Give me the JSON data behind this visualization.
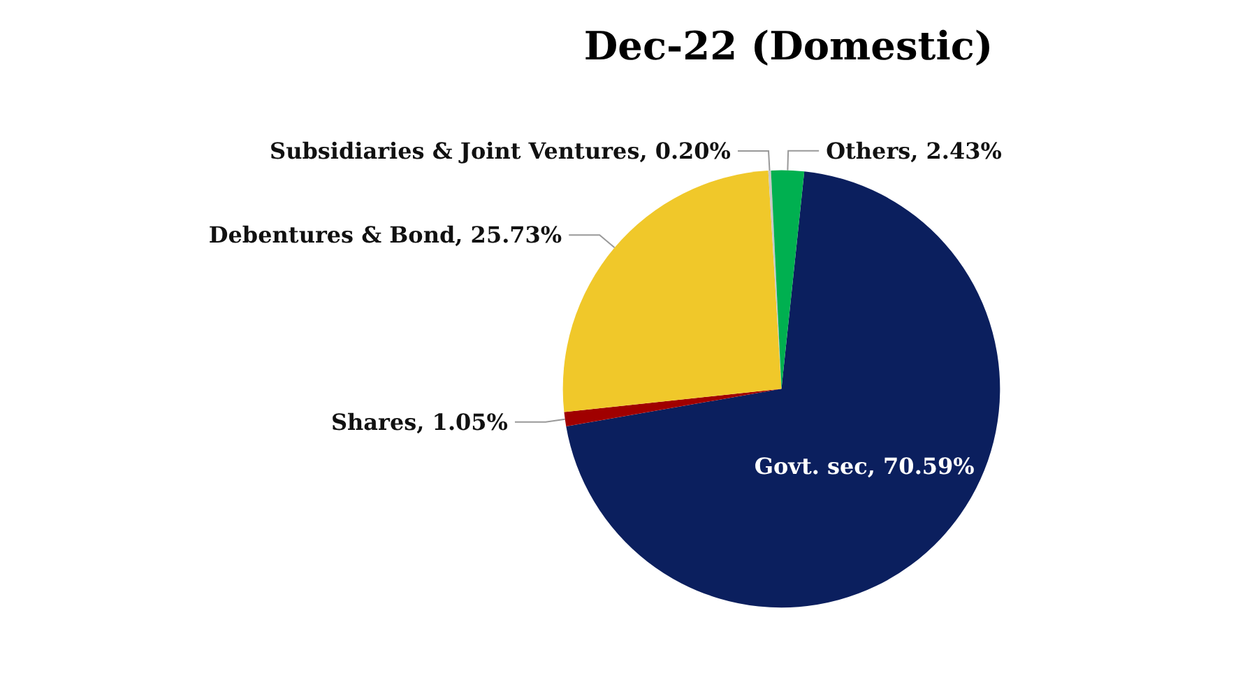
{
  "chart_data": {
    "type": "pie",
    "title": "Dec-22 (Domestic)",
    "categories": [
      "Govt. sec",
      "Shares",
      "Debentures & Bond",
      "Subsidiaries & Joint Ventures",
      "Others"
    ],
    "values": [
      70.59,
      1.05,
      25.73,
      0.2,
      2.43
    ],
    "value_labels": [
      "70.59%",
      "1.05%",
      "25.73%",
      "0.20%",
      "2.43%"
    ],
    "colors": [
      "#0b1f5e",
      "#a00000",
      "#f0c82a",
      "#c8c8c8",
      "#00b050"
    ],
    "legend": false
  }
}
